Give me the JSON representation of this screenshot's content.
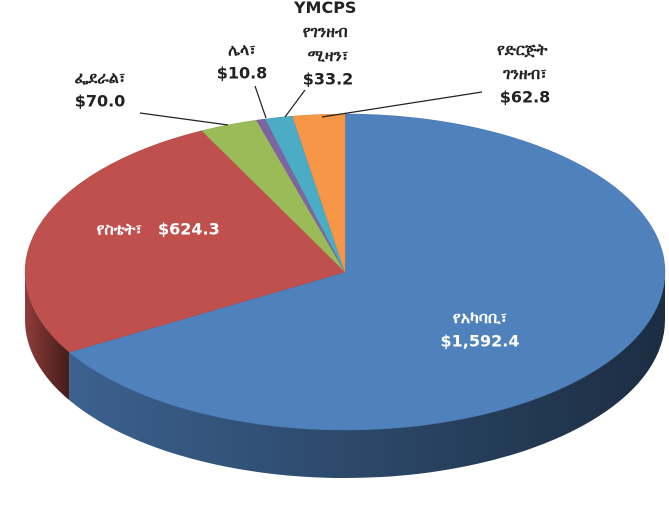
{
  "chart_data": {
    "type": "pie",
    "categories": [
      "የአካባቢ፣",
      "የስቴት፣",
      "ፌደራል፣",
      "ሌላ፣",
      "YMCPS የገንዘብ ሚዛን፣",
      "የድርጅት ገንዘብ፣"
    ],
    "values": [
      1592.4,
      624.3,
      70.0,
      10.8,
      33.2,
      62.8
    ],
    "value_labels": [
      "$1,592.4",
      "$624.3",
      "$70.0",
      "$10.8",
      "$33.2",
      "$62.8"
    ],
    "colors": [
      "#4f81bd",
      "#c0504d",
      "#9bbb59",
      "#8064a2",
      "#4bacc6",
      "#f79646"
    ]
  }
}
